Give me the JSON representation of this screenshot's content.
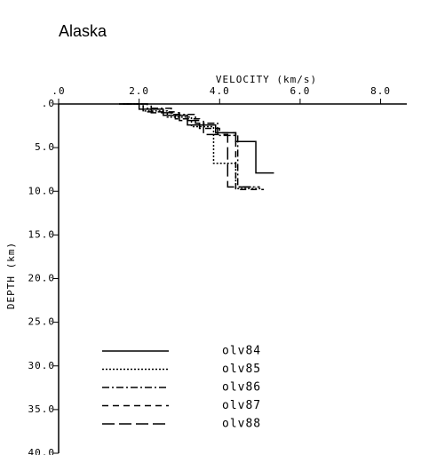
{
  "chart_data": {
    "type": "line",
    "title": "Alaska",
    "x_label": "VELOCITY (km/s)",
    "y_label": "DEPTH (km)",
    "xlim": [
      0,
      8.65
    ],
    "ylim": [
      0,
      40
    ],
    "xticks": [
      {
        "value": 0,
        "label": ".0"
      },
      {
        "value": 2,
        "label": "2.0"
      },
      {
        "value": 4,
        "label": "4.0"
      },
      {
        "value": 6,
        "label": "6.0"
      },
      {
        "value": 8,
        "label": "8.0"
      }
    ],
    "yticks": [
      {
        "value": 0,
        "label": ".0"
      },
      {
        "value": 5,
        "label": "5.0"
      },
      {
        "value": 10,
        "label": "10.0"
      },
      {
        "value": 15,
        "label": "15.0"
      },
      {
        "value": 20,
        "label": "20.0"
      },
      {
        "value": 25,
        "label": "25.0"
      },
      {
        "value": 30,
        "label": "30.0"
      },
      {
        "value": 35,
        "label": "35.0"
      },
      {
        "value": 40,
        "label": "40.0"
      }
    ],
    "y_inverted": true,
    "series": [
      {
        "name": "olv84",
        "color": "#000000",
        "x": [
          1.5,
          2.0,
          2.0,
          2.6,
          2.6,
          3.2,
          3.2,
          3.9,
          3.9,
          4.4,
          4.4,
          4.9,
          4.9,
          5.35
        ],
        "values": [
          0,
          0,
          0.6,
          0.6,
          1.3,
          1.3,
          2.4,
          2.4,
          3.3,
          3.3,
          4.3,
          4.3,
          7.9,
          7.9
        ]
      },
      {
        "name": "olv85",
        "color": "#000000",
        "x": [
          1.6,
          2.1,
          2.1,
          2.7,
          2.7,
          3.3,
          3.3,
          3.85,
          3.85,
          4.4,
          4.4,
          5.05
        ],
        "values": [
          0,
          0,
          0.8,
          0.8,
          1.5,
          1.5,
          2.6,
          2.6,
          6.8,
          6.8,
          9.7,
          9.7
        ]
      },
      {
        "name": "olv86",
        "color": "#000000",
        "x": [
          1.7,
          2.2,
          2.2,
          2.8,
          2.8,
          3.4,
          3.4,
          3.95,
          3.95,
          4.45,
          4.45,
          5.0
        ],
        "values": [
          0,
          0,
          0.5,
          0.5,
          1.2,
          1.2,
          2.2,
          2.2,
          3.6,
          3.6,
          9.5,
          9.5
        ]
      },
      {
        "name": "olv87",
        "color": "#000000",
        "x": [
          1.6,
          2.1,
          2.1,
          2.9,
          2.9,
          3.5,
          3.5,
          4.0,
          4.0,
          4.4,
          4.4,
          5.1
        ],
        "values": [
          0,
          0,
          0.9,
          0.9,
          1.7,
          1.7,
          2.8,
          2.8,
          3.3,
          3.3,
          9.8,
          9.8
        ]
      },
      {
        "name": "olv88",
        "color": "#000000",
        "x": [
          1.5,
          2.3,
          2.3,
          3.0,
          3.0,
          3.6,
          3.6,
          4.2,
          4.2,
          4.9
        ],
        "values": [
          0,
          0,
          1.0,
          1.0,
          1.9,
          1.9,
          3.5,
          3.5,
          9.5,
          9.5
        ]
      }
    ]
  }
}
